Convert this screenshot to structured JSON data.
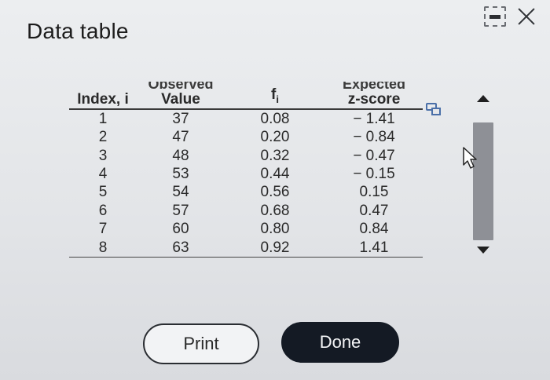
{
  "dialog": {
    "title": "Data table"
  },
  "table": {
    "headers": {
      "index": "Index, i",
      "observed_top": "Observed",
      "observed": "Value",
      "f_base": "f",
      "f_sub": "i",
      "expected_top": "Expected",
      "expected": "z-score"
    },
    "rows": [
      {
        "i": "1",
        "value": "37",
        "f": "0.08",
        "z": "− 1.41"
      },
      {
        "i": "2",
        "value": "47",
        "f": "0.20",
        "z": "− 0.84"
      },
      {
        "i": "3",
        "value": "48",
        "f": "0.32",
        "z": "− 0.47"
      },
      {
        "i": "4",
        "value": "53",
        "f": "0.44",
        "z": "− 0.15"
      },
      {
        "i": "5",
        "value": "54",
        "f": "0.56",
        "z": "0.15"
      },
      {
        "i": "6",
        "value": "57",
        "f": "0.68",
        "z": "0.47"
      },
      {
        "i": "7",
        "value": "60",
        "f": "0.80",
        "z": "0.84"
      },
      {
        "i": "8",
        "value": "63",
        "f": "0.92",
        "z": "1.41"
      }
    ]
  },
  "buttons": {
    "print": "Print",
    "done": "Done"
  },
  "icons": {
    "minimize": "minimize-icon",
    "close": "close-icon",
    "copy": "copy-icon",
    "cursor": "cursor-icon",
    "scroll_up": "scroll-up-icon",
    "scroll_down": "scroll-down-icon"
  }
}
